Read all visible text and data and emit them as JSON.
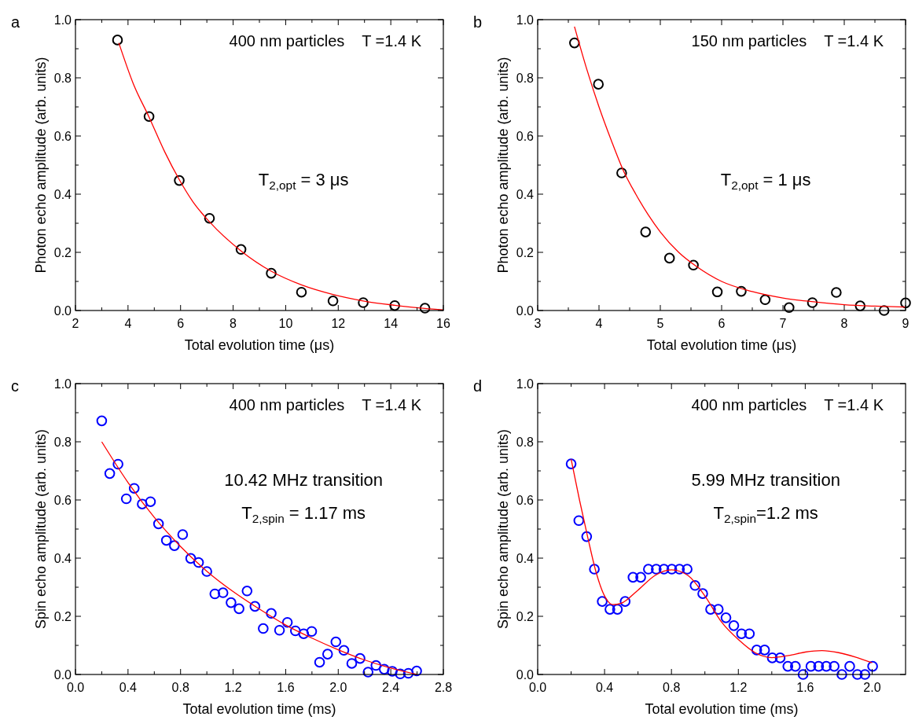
{
  "chart_data": [
    {
      "type": "scatter",
      "xlabel": "Total evolution time (μs)",
      "ylabel": "Photon echo amplitude (arb. units)",
      "xlim": [
        2,
        16
      ],
      "ylim": [
        0,
        1
      ],
      "xticks": [
        2,
        {
          "value": 3,
          "label": null
        },
        4,
        {
          "value": 5,
          "label": null
        },
        6,
        {
          "value": 7,
          "label": null
        },
        8,
        {
          "value": 9,
          "label": null
        },
        10,
        {
          "value": 11,
          "label": null
        },
        12,
        {
          "value": 13,
          "label": null
        },
        14,
        {
          "value": 15,
          "label": null
        },
        16
      ],
      "yticks": [
        {
          "value": 0,
          "label": "0.0"
        },
        {
          "value": 0.1,
          "label": null
        },
        {
          "value": 0.2,
          "label": "0.2"
        },
        {
          "value": 0.3,
          "label": null
        },
        {
          "value": 0.4,
          "label": "0.4"
        },
        {
          "value": 0.5,
          "label": null
        },
        {
          "value": 0.6,
          "label": "0.6"
        },
        {
          "value": 0.7,
          "label": null
        },
        {
          "value": 0.8,
          "label": "0.8"
        },
        {
          "value": 0.9,
          "label": null
        },
        {
          "value": 1,
          "label": "1.0"
        }
      ],
      "annotations": [
        "a",
        "400 nm particles    T =1.4 K",
        "T$_{2,opt}$ = 3 μs"
      ],
      "series": [
        {
          "marker": "circle",
          "color": "#000000",
          "x": [
            3.6,
            4.8,
            5.95,
            7.1,
            8.3,
            9.45,
            10.6,
            11.8,
            12.95,
            14.15,
            15.3
          ],
          "values": [
            0.93,
            0.667,
            0.447,
            0.317,
            0.21,
            0.128,
            0.063,
            0.033,
            0.027,
            0.017,
            0.008
          ]
        },
        {
          "type": "line",
          "color": "#ff0000",
          "x": [
            3.65,
            4.2,
            4.8,
            5.4,
            5.95,
            6.5,
            7.1,
            8.3,
            9.45,
            10.6,
            11.8,
            12.95,
            14.15,
            15.3,
            16
          ],
          "values": [
            0.92,
            0.78,
            0.665,
            0.545,
            0.45,
            0.37,
            0.305,
            0.205,
            0.135,
            0.088,
            0.055,
            0.033,
            0.018,
            0.007,
            0.002
          ]
        }
      ]
    },
    {
      "type": "scatter",
      "xlabel": "Total evolution time (μs)",
      "ylabel": "Photon echo amplitude (arb. units)",
      "xlim": [
        3,
        9
      ],
      "ylim": [
        0,
        1
      ],
      "xticks": [
        3,
        {
          "value": 3.5,
          "label": null
        },
        4,
        {
          "value": 4.5,
          "label": null
        },
        5,
        {
          "value": 5.5,
          "label": null
        },
        6,
        {
          "value": 6.5,
          "label": null
        },
        7,
        {
          "value": 7.5,
          "label": null
        },
        8,
        {
          "value": 8.5,
          "label": null
        },
        9
      ],
      "yticks": [
        {
          "value": 0,
          "label": "0.0"
        },
        {
          "value": 0.1,
          "label": null
        },
        {
          "value": 0.2,
          "label": "0.2"
        },
        {
          "value": 0.3,
          "label": null
        },
        {
          "value": 0.4,
          "label": "0.4"
        },
        {
          "value": 0.5,
          "label": null
        },
        {
          "value": 0.6,
          "label": "0.6"
        },
        {
          "value": 0.7,
          "label": null
        },
        {
          "value": 0.8,
          "label": "0.8"
        },
        {
          "value": 0.9,
          "label": null
        },
        {
          "value": 1,
          "label": "1.0"
        }
      ],
      "annotations": [
        "b",
        "150 nm particles    T =1.4 K",
        "T$_{2,opt}$ = 1 μs"
      ],
      "series": [
        {
          "marker": "circle",
          "color": "#000000",
          "x": [
            3.6,
            3.99,
            4.37,
            4.76,
            5.15,
            5.54,
            5.93,
            6.32,
            6.71,
            7.1,
            7.48,
            7.87,
            8.26,
            8.65,
            9.0
          ],
          "values": [
            0.92,
            0.778,
            0.473,
            0.27,
            0.18,
            0.156,
            0.064,
            0.066,
            0.037,
            0.01,
            0.027,
            0.062,
            0.016,
            0.0,
            0.026
          ]
        },
        {
          "type": "line",
          "color": "#ff0000",
          "x": [
            3.6,
            3.8,
            4.0,
            4.2,
            4.4,
            4.6,
            4.8,
            5.0,
            5.3,
            5.6,
            6.0,
            6.5,
            7.0,
            7.5,
            8.0,
            8.5,
            9.0
          ],
          "values": [
            0.976,
            0.83,
            0.7,
            0.585,
            0.48,
            0.4,
            0.33,
            0.27,
            0.2,
            0.15,
            0.1,
            0.065,
            0.043,
            0.03,
            0.02,
            0.015,
            0.012
          ]
        }
      ]
    },
    {
      "type": "scatter",
      "xlabel": "Total evolution time (ms)",
      "ylabel": "Spin echo amplitude (arb. units)",
      "xlim": [
        0,
        2.8
      ],
      "ylim": [
        0,
        1
      ],
      "xticks": [
        {
          "value": 0,
          "label": "0.0"
        },
        {
          "value": 0.2,
          "label": null
        },
        {
          "value": 0.4,
          "label": "0.4"
        },
        {
          "value": 0.6,
          "label": null
        },
        {
          "value": 0.8,
          "label": "0.8"
        },
        {
          "value": 1.0,
          "label": null
        },
        {
          "value": 1.2,
          "label": "1.2"
        },
        {
          "value": 1.4,
          "label": null
        },
        {
          "value": 1.6,
          "label": "1.6"
        },
        {
          "value": 1.8,
          "label": null
        },
        {
          "value": 2.0,
          "label": "2.0"
        },
        {
          "value": 2.2,
          "label": null
        },
        {
          "value": 2.4,
          "label": "2.4"
        },
        {
          "value": 2.6,
          "label": null
        },
        {
          "value": 2.8,
          "label": "2.8"
        }
      ],
      "yticks": [
        {
          "value": 0,
          "label": "0.0"
        },
        {
          "value": 0.1,
          "label": null
        },
        {
          "value": 0.2,
          "label": "0.2"
        },
        {
          "value": 0.3,
          "label": null
        },
        {
          "value": 0.4,
          "label": "0.4"
        },
        {
          "value": 0.5,
          "label": null
        },
        {
          "value": 0.6,
          "label": "0.6"
        },
        {
          "value": 0.7,
          "label": null
        },
        {
          "value": 0.8,
          "label": "0.8"
        },
        {
          "value": 0.9,
          "label": null
        },
        {
          "value": 1,
          "label": "1.0"
        }
      ],
      "annotations": [
        "c",
        "400 nm particles    T =1.4 K",
        "10.42 MHz transition",
        "T$_{2,spin}$ = 1.17 ms"
      ],
      "series": [
        {
          "marker": "circle",
          "color": "#0000ff",
          "x": [
            0.2,
            0.261,
            0.324,
            0.387,
            0.447,
            0.508,
            0.571,
            0.632,
            0.692,
            0.753,
            0.816,
            0.877,
            0.937,
            1.0,
            1.061,
            1.123,
            1.184,
            1.245,
            1.306,
            1.366,
            1.429,
            1.49,
            1.553,
            1.613,
            1.674,
            1.737,
            1.798,
            1.858,
            1.919,
            1.982,
            2.043,
            2.103,
            2.166,
            2.227,
            2.287,
            2.35,
            2.411,
            2.472,
            2.534,
            2.597
          ],
          "values": [
            0.872,
            0.691,
            0.723,
            0.604,
            0.64,
            0.586,
            0.594,
            0.518,
            0.461,
            0.443,
            0.481,
            0.399,
            0.385,
            0.354,
            0.277,
            0.281,
            0.247,
            0.226,
            0.287,
            0.234,
            0.158,
            0.21,
            0.152,
            0.179,
            0.15,
            0.14,
            0.148,
            0.042,
            0.07,
            0.112,
            0.083,
            0.038,
            0.055,
            0.008,
            0.031,
            0.018,
            0.011,
            0.002,
            0.004,
            0.012
          ]
        },
        {
          "type": "line",
          "color": "#ff0000",
          "x": [
            0.2,
            0.4,
            0.6,
            0.8,
            1.0,
            1.2,
            1.4,
            1.6,
            1.8,
            2.0,
            2.2,
            2.4,
            2.6
          ],
          "values": [
            0.8,
            0.66,
            0.54,
            0.44,
            0.355,
            0.285,
            0.225,
            0.17,
            0.125,
            0.085,
            0.05,
            0.022,
            0.0
          ]
        }
      ]
    },
    {
      "type": "scatter",
      "xlabel": "Total evolution time (ms)",
      "ylabel": "Spin echo amplitude (arb. units)",
      "xlim": [
        0,
        2.2
      ],
      "ylim": [
        0,
        1
      ],
      "xticks": [
        {
          "value": 0,
          "label": "0.0"
        },
        {
          "value": 0.2,
          "label": null
        },
        {
          "value": 0.4,
          "label": "0.4"
        },
        {
          "value": 0.6,
          "label": null
        },
        {
          "value": 0.8,
          "label": "0.8"
        },
        {
          "value": 1.0,
          "label": null
        },
        {
          "value": 1.2,
          "label": "1.2"
        },
        {
          "value": 1.4,
          "label": null
        },
        {
          "value": 1.6,
          "label": "1.6"
        },
        {
          "value": 1.8,
          "label": null
        },
        {
          "value": 2.0,
          "label": "2.0"
        }
      ],
      "yticks": [
        {
          "value": 0,
          "label": "0.0"
        },
        {
          "value": 0.1,
          "label": null
        },
        {
          "value": 0.2,
          "label": "0.2"
        },
        {
          "value": 0.3,
          "label": null
        },
        {
          "value": 0.4,
          "label": "0.4"
        },
        {
          "value": 0.5,
          "label": null
        },
        {
          "value": 0.6,
          "label": "0.6"
        },
        {
          "value": 0.7,
          "label": null
        },
        {
          "value": 0.8,
          "label": "0.8"
        },
        {
          "value": 0.9,
          "label": null
        },
        {
          "value": 1,
          "label": "1.0"
        }
      ],
      "annotations": [
        "d",
        "400 nm particles    T =1.4 K",
        "5.99 MHz transition",
        "T$_{2,spin}$=1.2 ms"
      ],
      "series": [
        {
          "marker": "circle",
          "color": "#0000ff",
          "x": [
            0.2,
            0.246,
            0.293,
            0.339,
            0.386,
            0.432,
            0.477,
            0.523,
            0.57,
            0.616,
            0.662,
            0.709,
            0.755,
            0.802,
            0.848,
            0.894,
            0.941,
            0.987,
            1.034,
            1.08,
            1.126,
            1.173,
            1.219,
            1.266,
            1.31,
            1.357,
            1.403,
            1.45,
            1.496,
            1.541,
            1.587,
            1.634,
            1.68,
            1.726,
            1.773,
            1.819,
            1.866,
            1.912,
            1.957,
            2.003
          ],
          "values": [
            0.724,
            0.529,
            0.474,
            0.362,
            0.251,
            0.224,
            0.224,
            0.251,
            0.334,
            0.334,
            0.362,
            0.362,
            0.362,
            0.362,
            0.362,
            0.362,
            0.306,
            0.278,
            0.224,
            0.224,
            0.195,
            0.168,
            0.14,
            0.14,
            0.084,
            0.084,
            0.057,
            0.057,
            0.028,
            0.028,
            0.0,
            0.028,
            0.028,
            0.028,
            0.028,
            0.0,
            0.028,
            0.0,
            0.0,
            0.028
          ]
        },
        {
          "type": "line",
          "color": "#ff0000",
          "x": [
            0.2,
            0.25,
            0.3,
            0.35,
            0.4,
            0.45,
            0.5,
            0.6,
            0.7,
            0.8,
            0.9,
            1.0,
            1.1,
            1.2,
            1.3,
            1.4,
            1.5,
            1.6,
            1.7,
            1.8,
            1.9,
            2.0
          ],
          "values": [
            0.74,
            0.6,
            0.47,
            0.35,
            0.27,
            0.24,
            0.245,
            0.29,
            0.34,
            0.36,
            0.34,
            0.27,
            0.18,
            0.12,
            0.075,
            0.058,
            0.065,
            0.077,
            0.082,
            0.075,
            0.06,
            0.04
          ]
        }
      ]
    }
  ]
}
